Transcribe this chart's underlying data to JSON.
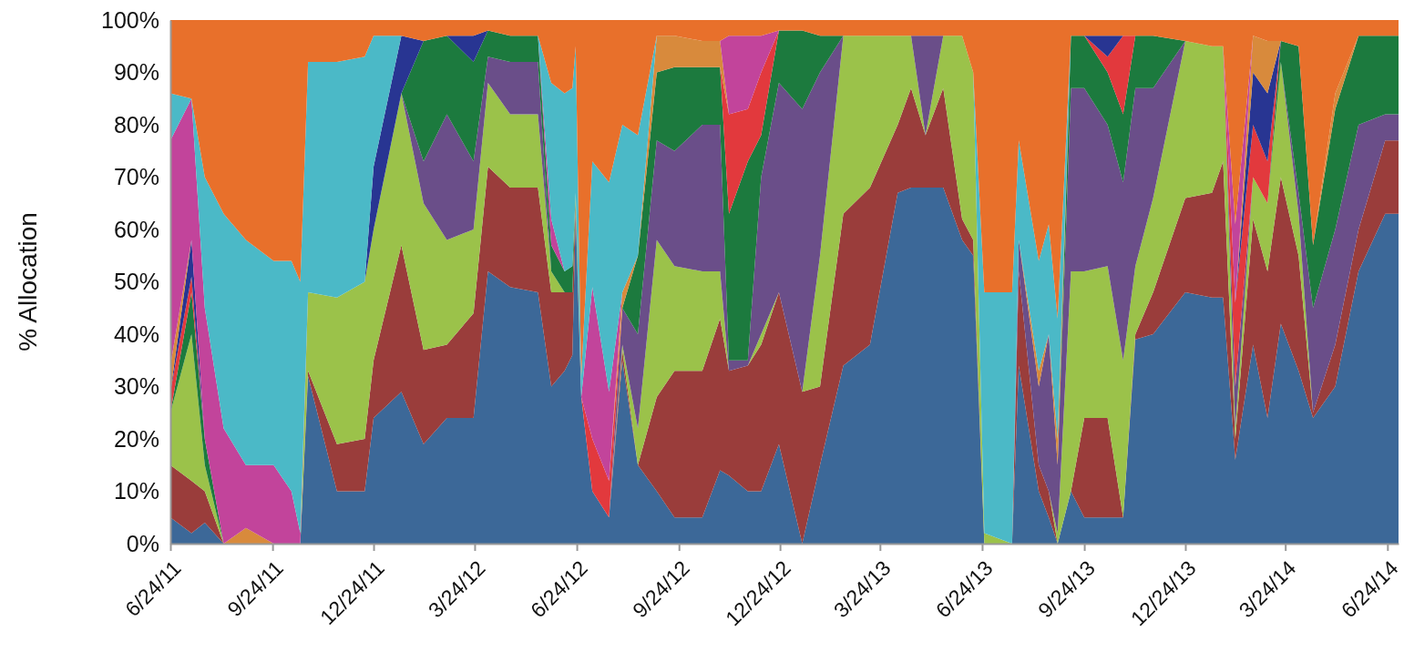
{
  "chart_data": {
    "type": "area",
    "stacked": true,
    "ylabel": "% Allocation",
    "x": [
      "2011-06-24",
      "2011-07-13",
      "2011-07-25",
      "2011-08-11",
      "2011-08-31",
      "2011-09-25",
      "2011-10-11",
      "2011-10-19",
      "2011-10-26",
      "2011-11-21",
      "2011-12-16",
      "2011-12-24",
      "2012-01-18",
      "2012-02-07",
      "2012-02-28",
      "2012-03-23",
      "2012-04-05",
      "2012-04-25",
      "2012-05-20",
      "2012-06-01",
      "2012-06-13",
      "2012-06-20",
      "2012-06-23",
      "2012-06-28",
      "2012-07-08",
      "2012-07-23",
      "2012-08-04",
      "2012-08-18",
      "2012-09-04",
      "2012-09-20",
      "2012-10-15",
      "2012-10-31",
      "2012-11-08",
      "2012-11-25",
      "2012-12-07",
      "2012-12-23",
      "2013-01-13",
      "2013-01-29",
      "2013-02-19",
      "2013-03-15",
      "2013-04-09",
      "2013-04-21",
      "2013-05-04",
      "2013-05-20",
      "2013-06-06",
      "2013-06-16",
      "2013-06-26",
      "2013-07-21",
      "2013-07-27",
      "2013-08-14",
      "2013-08-23",
      "2013-08-31",
      "2013-09-12",
      "2013-09-24",
      "2013-10-15",
      "2013-10-29",
      "2013-11-09",
      "2013-11-25",
      "2013-12-24",
      "2014-01-17",
      "2014-01-27",
      "2014-02-07",
      "2014-02-23",
      "2014-03-08",
      "2014-03-20",
      "2014-04-05",
      "2014-04-18",
      "2014-05-08",
      "2014-05-29",
      "2014-06-22",
      "2014-07-04"
    ],
    "xlim": [
      "2011-06-24",
      "2014-07-04"
    ],
    "xticks": [
      {
        "value": "2011-06-24",
        "label": "6/24/11"
      },
      {
        "value": "2011-09-24",
        "label": "9/24/11"
      },
      {
        "value": "2011-12-24",
        "label": "12/24/11"
      },
      {
        "value": "2012-03-24",
        "label": "3/24/12"
      },
      {
        "value": "2012-06-24",
        "label": "6/24/12"
      },
      {
        "value": "2012-09-24",
        "label": "9/24/12"
      },
      {
        "value": "2012-12-24",
        "label": "12/24/12"
      },
      {
        "value": "2013-03-24",
        "label": "3/24/13"
      },
      {
        "value": "2013-06-24",
        "label": "6/24/13"
      },
      {
        "value": "2013-09-24",
        "label": "9/24/13"
      },
      {
        "value": "2013-12-24",
        "label": "12/24/13"
      },
      {
        "value": "2014-03-24",
        "label": "3/24/14"
      },
      {
        "value": "2014-06-24",
        "label": "6/24/14"
      }
    ],
    "ylim": [
      0,
      100
    ],
    "yticks": [
      {
        "value": 0,
        "label": "0%"
      },
      {
        "value": 10,
        "label": "10%"
      },
      {
        "value": 20,
        "label": "20%"
      },
      {
        "value": 30,
        "label": "30%"
      },
      {
        "value": 40,
        "label": "40%"
      },
      {
        "value": 50,
        "label": "50%"
      },
      {
        "value": 60,
        "label": "60%"
      },
      {
        "value": 70,
        "label": "70%"
      },
      {
        "value": 80,
        "label": "80%"
      },
      {
        "value": 90,
        "label": "90%"
      },
      {
        "value": 100,
        "label": "100%"
      }
    ],
    "series": [
      {
        "color": "#3c6898",
        "values": [
          5,
          2,
          4,
          0,
          null,
          null,
          null,
          0,
          32,
          10,
          10,
          24,
          29,
          19,
          24,
          24,
          52,
          49,
          48,
          30,
          33,
          36,
          63,
          28,
          10,
          5,
          35,
          15,
          10,
          5,
          5,
          14,
          13,
          10,
          10,
          19,
          0,
          15,
          34,
          38,
          67,
          68,
          68,
          68,
          58,
          55,
          0,
          0,
          34,
          10,
          5,
          0,
          10,
          5,
          5,
          5,
          39,
          40,
          48,
          47,
          47,
          16,
          38,
          24,
          42,
          33,
          24,
          30,
          52,
          63,
          63
        ]
      },
      {
        "color": "#9a3d3b",
        "values": [
          10,
          10,
          6,
          0,
          null,
          null,
          null,
          0,
          1,
          9,
          10,
          11,
          28,
          18,
          14,
          20,
          20,
          19,
          20,
          18,
          15,
          12,
          2,
          0,
          null,
          0,
          2,
          0,
          18,
          28,
          28,
          29,
          20,
          24,
          28,
          29,
          29,
          15,
          29,
          30,
          13,
          19,
          10,
          19,
          4,
          3,
          0,
          0,
          18,
          5,
          5,
          0,
          0,
          19,
          19,
          0,
          1,
          8,
          18,
          20,
          26,
          4,
          24,
          28,
          28,
          22,
          1,
          8,
          8,
          14,
          14
        ]
      },
      {
        "color": "#9bc24a",
        "values": [
          10,
          28,
          5,
          0,
          null,
          null,
          null,
          0,
          15,
          28,
          30,
          25,
          29,
          28,
          20,
          16,
          16,
          14,
          14,
          4,
          0,
          0,
          2,
          0,
          null,
          0,
          1,
          7,
          30,
          20,
          19,
          9,
          0,
          0,
          2,
          0,
          0,
          25,
          34,
          29,
          17,
          10,
          0,
          10,
          35,
          32,
          2,
          0,
          null,
          null,
          0,
          2,
          42,
          28,
          29,
          30,
          13,
          18,
          30,
          28,
          22,
          2,
          8,
          13,
          22,
          8,
          0,
          null,
          null,
          null,
          null
        ]
      },
      {
        "color": "#6a4e89",
        "values": [
          null,
          null,
          null,
          null,
          null,
          null,
          null,
          null,
          null,
          null,
          null,
          null,
          0,
          8,
          24,
          13,
          5,
          10,
          10,
          0,
          null,
          null,
          null,
          null,
          null,
          0,
          7,
          18,
          19,
          22,
          28,
          28,
          2,
          1,
          30,
          40,
          54,
          35,
          0,
          null,
          null,
          0,
          19,
          0,
          null,
          null,
          null,
          0,
          6,
          15,
          30,
          13,
          35,
          35,
          27,
          34,
          34,
          21,
          0,
          null,
          0,
          8,
          0,
          null,
          0,
          4,
          20,
          22,
          20,
          5,
          5
        ]
      },
      {
        "color": "#1c7a3e",
        "values": [
          0,
          8,
          5,
          0,
          null,
          null,
          null,
          null,
          null,
          null,
          null,
          null,
          0,
          23,
          15,
          19,
          5,
          5,
          5,
          5,
          4,
          5,
          0,
          null,
          null,
          null,
          0,
          15,
          13,
          16,
          11,
          11,
          28,
          38,
          8,
          10,
          15,
          7,
          0,
          null,
          null,
          null,
          null,
          null,
          null,
          null,
          null,
          null,
          null,
          null,
          null,
          0,
          10,
          10,
          10,
          13,
          10,
          10,
          0,
          null,
          null,
          null,
          null,
          0,
          4,
          28,
          12,
          23,
          17,
          15,
          15
        ]
      },
      {
        "color": "#e2393d",
        "values": [
          4,
          3,
          0,
          null,
          null,
          null,
          null,
          null,
          null,
          null,
          null,
          null,
          null,
          null,
          null,
          null,
          null,
          null,
          null,
          null,
          null,
          null,
          null,
          0,
          10,
          7,
          0,
          null,
          null,
          null,
          null,
          0,
          19,
          10,
          12,
          0,
          null,
          null,
          null,
          null,
          null,
          null,
          null,
          null,
          null,
          null,
          null,
          null,
          null,
          null,
          null,
          null,
          null,
          0,
          3,
          15,
          0,
          null,
          null,
          null,
          0,
          16,
          10,
          8,
          0,
          null,
          null,
          null,
          null,
          null,
          null
        ]
      },
      {
        "color": "#283592",
        "values": [
          0,
          7,
          0,
          null,
          null,
          null,
          null,
          null,
          null,
          null,
          0,
          12,
          11,
          0,
          0,
          5,
          0,
          null,
          null,
          null,
          null,
          null,
          null,
          null,
          null,
          null,
          null,
          null,
          null,
          null,
          null,
          null,
          null,
          null,
          null,
          null,
          null,
          null,
          null,
          null,
          null,
          null,
          null,
          null,
          null,
          null,
          null,
          null,
          null,
          null,
          null,
          null,
          null,
          0,
          4,
          0,
          null,
          null,
          null,
          null,
          null,
          0,
          10,
          13,
          0,
          null,
          null,
          null,
          null,
          null,
          null
        ]
      },
      {
        "color": "#d88a3c",
        "values": [
          5,
          0,
          null,
          0,
          3,
          0,
          null,
          null,
          null,
          null,
          null,
          null,
          null,
          null,
          null,
          null,
          null,
          null,
          null,
          null,
          null,
          null,
          null,
          null,
          null,
          0,
          3,
          0,
          7,
          6,
          5,
          5,
          0,
          null,
          null,
          null,
          null,
          null,
          null,
          null,
          null,
          null,
          null,
          null,
          null,
          null,
          null,
          null,
          0,
          3,
          0,
          5,
          0,
          null,
          null,
          null,
          null,
          null,
          null,
          null,
          null,
          0,
          7,
          10,
          0,
          null,
          0,
          3,
          0,
          null,
          null
        ]
      },
      {
        "color": "#c2449b",
        "values": [
          43,
          27,
          25,
          22,
          12,
          15,
          10,
          2,
          0,
          null,
          null,
          null,
          null,
          null,
          null,
          null,
          null,
          null,
          0,
          5,
          0,
          null,
          null,
          0,
          29,
          17,
          0,
          null,
          null,
          null,
          null,
          0,
          15,
          14,
          7,
          0,
          null,
          null,
          null,
          null,
          null,
          null,
          null,
          null,
          null,
          null,
          null,
          null,
          null,
          null,
          null,
          null,
          null,
          null,
          null,
          null,
          null,
          null,
          null,
          null,
          0,
          15,
          0,
          null,
          null,
          null,
          null,
          null,
          null,
          null,
          null
        ]
      },
      {
        "color": "#4bb9c7",
        "values": [
          9,
          0,
          25,
          41,
          43,
          39,
          44,
          48,
          44,
          45,
          43,
          25,
          0,
          null,
          null,
          null,
          null,
          null,
          0,
          26,
          34,
          34,
          28,
          4,
          24,
          40,
          32,
          23,
          0,
          null,
          null,
          null,
          null,
          null,
          null,
          null,
          null,
          null,
          null,
          null,
          null,
          null,
          null,
          null,
          null,
          0,
          46,
          48,
          19,
          21,
          21,
          23,
          0,
          null,
          null,
          null,
          null,
          null,
          null,
          null,
          null,
          null,
          null,
          null,
          null,
          null,
          null,
          null,
          null,
          null,
          null
        ]
      },
      {
        "color": "#e8702b",
        "values": [
          14,
          15,
          30,
          37,
          42,
          46,
          46,
          50,
          8,
          8,
          7,
          3,
          3,
          4,
          3,
          3,
          2,
          3,
          3,
          12,
          14,
          13,
          5,
          68,
          27,
          31,
          20,
          22,
          3,
          3,
          4,
          4,
          3,
          3,
          3,
          2,
          2,
          3,
          3,
          3,
          3,
          3,
          3,
          3,
          3,
          10,
          52,
          52,
          23,
          46,
          39,
          57,
          3,
          3,
          3,
          3,
          3,
          3,
          4,
          5,
          5,
          39,
          3,
          4,
          4,
          5,
          43,
          14,
          3,
          3,
          3
        ]
      }
    ]
  }
}
